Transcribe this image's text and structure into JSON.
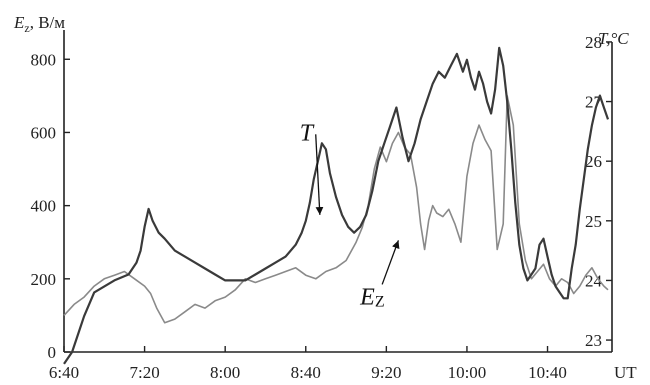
{
  "chart_data": {
    "type": "line",
    "xlabel": "UT",
    "left_axis": {
      "label_main": "E",
      "label_sub": "z",
      "label_unit": ", В/м",
      "ylim": [
        0,
        880
      ],
      "ticks": [
        0,
        200,
        400,
        600,
        800
      ],
      "tick_labels": [
        "0",
        "200",
        "400",
        "600",
        "800"
      ]
    },
    "right_axis": {
      "label": "T,°C",
      "ylim": [
        22.8,
        28.2
      ],
      "ticks": [
        23,
        24,
        25,
        26,
        27,
        28
      ],
      "tick_labels": [
        "23",
        "24",
        "25",
        "26",
        "27",
        "28"
      ]
    },
    "x_ticks": [
      400,
      440,
      480,
      520,
      560,
      600,
      640
    ],
    "x_tick_labels": [
      "6:40",
      "7:20",
      "8:00",
      "8:40",
      "9:20",
      "10:00",
      "10:40"
    ],
    "xlim": [
      400,
      672
    ],
    "grid": false,
    "series": [
      {
        "name": "T",
        "axis": "right",
        "color": "#3a3a3a",
        "x": [
          400,
          404,
          407,
          410,
          415,
          420,
          425,
          432,
          436,
          438,
          440,
          442,
          444,
          447,
          450,
          455,
          460,
          465,
          470,
          475,
          480,
          485,
          490,
          495,
          500,
          505,
          510,
          515,
          518,
          520,
          522,
          524,
          526,
          528,
          530,
          532,
          535,
          538,
          541,
          544,
          547,
          550,
          553,
          556,
          559,
          562,
          565,
          568,
          571,
          574,
          577,
          580,
          583,
          586,
          589,
          592,
          595,
          598,
          600,
          602,
          604,
          606,
          608,
          610,
          612,
          614,
          616,
          618,
          620,
          622,
          624,
          626,
          628,
          630,
          632,
          634,
          636,
          638,
          640,
          642,
          644,
          646,
          648,
          650,
          652,
          654,
          656,
          658,
          660,
          662,
          664,
          666,
          668,
          670
        ],
        "y": [
          22.6,
          22.8,
          23.1,
          23.4,
          23.8,
          23.9,
          24.0,
          24.1,
          24.3,
          24.5,
          24.9,
          25.2,
          25.0,
          24.8,
          24.7,
          24.5,
          24.4,
          24.3,
          24.2,
          24.1,
          24.0,
          24.0,
          24.0,
          24.1,
          24.2,
          24.3,
          24.4,
          24.6,
          24.8,
          25.0,
          25.3,
          25.7,
          26.0,
          26.3,
          26.2,
          25.8,
          25.4,
          25.1,
          24.9,
          24.8,
          24.9,
          25.1,
          25.5,
          26.0,
          26.3,
          26.6,
          26.9,
          26.4,
          26.0,
          26.3,
          26.7,
          27.0,
          27.3,
          27.5,
          27.4,
          27.6,
          27.8,
          27.5,
          27.7,
          27.4,
          27.2,
          27.5,
          27.3,
          27.0,
          26.8,
          27.2,
          27.9,
          27.6,
          27.0,
          26.2,
          25.3,
          24.6,
          24.2,
          24.0,
          24.1,
          24.2,
          24.6,
          24.7,
          24.4,
          24.1,
          23.9,
          23.8,
          23.7,
          23.7,
          24.2,
          24.6,
          25.2,
          25.7,
          26.2,
          26.6,
          26.9,
          27.1,
          26.9,
          26.7
        ]
      },
      {
        "name": "Ez",
        "axis": "left",
        "color": "#8a8a8a",
        "x": [
          400,
          405,
          410,
          415,
          420,
          425,
          430,
          435,
          440,
          443,
          446,
          450,
          455,
          460,
          465,
          470,
          475,
          480,
          485,
          490,
          495,
          500,
          505,
          510,
          515,
          520,
          525,
          530,
          535,
          540,
          545,
          548,
          551,
          554,
          557,
          560,
          563,
          566,
          569,
          572,
          575,
          577,
          579,
          581,
          583,
          585,
          588,
          591,
          594,
          597,
          600,
          603,
          606,
          609,
          612,
          615,
          618,
          620,
          623,
          626,
          629,
          632,
          635,
          638,
          641,
          644,
          647,
          650,
          653,
          656,
          659,
          662,
          665,
          668,
          670
        ],
        "y": [
          100,
          130,
          150,
          180,
          200,
          210,
          220,
          200,
          180,
          160,
          120,
          80,
          90,
          110,
          130,
          120,
          140,
          150,
          170,
          200,
          190,
          200,
          210,
          220,
          230,
          210,
          200,
          220,
          230,
          250,
          300,
          340,
          400,
          500,
          560,
          520,
          570,
          600,
          560,
          540,
          450,
          350,
          280,
          360,
          400,
          380,
          370,
          390,
          350,
          300,
          480,
          570,
          620,
          580,
          550,
          280,
          350,
          700,
          620,
          350,
          250,
          200,
          220,
          240,
          200,
          180,
          200,
          190,
          160,
          180,
          210,
          230,
          200,
          180,
          170
        ]
      }
    ],
    "annotations": [
      {
        "text": "T",
        "target_series": "T",
        "label_x": 517,
        "label_T": 26.35,
        "arrow_x": 527,
        "arrow_T": 25.1
      },
      {
        "text": "E",
        "sub": "Z",
        "target_series": "Ez",
        "label_x": 547,
        "label_Ez": 130,
        "arrow_x": 566,
        "arrow_Ez": 305
      }
    ]
  }
}
